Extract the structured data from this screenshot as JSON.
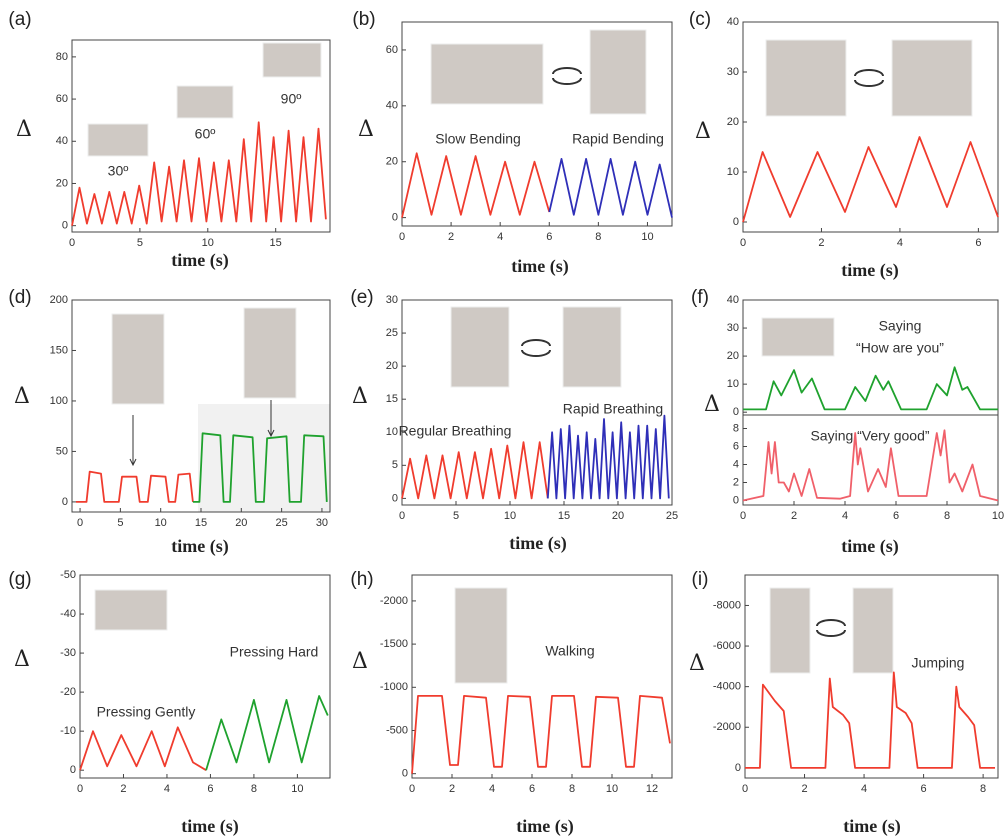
{
  "chart_data": [
    {
      "type": "line",
      "panel_label": "(a)",
      "ylabel": "Δ",
      "xlabel": "time (s)",
      "annotations": [
        "30º",
        "60º",
        "90º"
      ],
      "xlim": [
        0,
        19
      ],
      "xticks": [
        0,
        5,
        10,
        15
      ],
      "ylim": [
        -3,
        88
      ],
      "yticks": [
        0,
        20,
        40,
        60,
        80
      ],
      "series": [
        {
          "color": "#f03c2e",
          "x": [
            0,
            0.55,
            1.1,
            1.65,
            2.2,
            2.75,
            3.3,
            3.85,
            4.4,
            4.95,
            5.5,
            6.05,
            6.6,
            7.15,
            7.7,
            8.25,
            8.8,
            9.35,
            9.9,
            10.45,
            11,
            11.55,
            12.1,
            12.65,
            13.2,
            13.75,
            14.3,
            14.85,
            15.4,
            15.95,
            16.5,
            17.05,
            17.6,
            18.15,
            18.7
          ],
          "values": [
            0,
            18,
            1,
            15,
            1,
            16,
            1,
            16,
            1,
            19,
            1,
            30,
            2,
            28,
            2,
            31,
            2,
            32,
            2,
            30,
            2,
            31,
            2,
            41,
            2,
            49,
            2,
            42,
            2,
            45,
            2,
            42,
            2,
            46,
            3
          ]
        }
      ]
    },
    {
      "type": "line",
      "panel_label": "(b)",
      "ylabel": "Δ",
      "xlabel": "time (s)",
      "annotations": [
        "Slow Bending",
        "Rapid Bending"
      ],
      "xlim": [
        0,
        11
      ],
      "xticks": [
        0,
        2,
        4,
        6,
        8,
        10
      ],
      "ylim": [
        -3,
        70
      ],
      "yticks": [
        0,
        20,
        40,
        60
      ],
      "series": [
        {
          "color": "#f03c2e",
          "x": [
            0,
            0.6,
            1.2,
            1.8,
            2.4,
            3.0,
            3.6,
            4.2,
            4.8,
            5.4,
            6.0
          ],
          "values": [
            0,
            23,
            1,
            22,
            1,
            22,
            1,
            20,
            1,
            20,
            2
          ]
        },
        {
          "color": "#2f2fb8",
          "x": [
            6.0,
            6.5,
            7.0,
            7.5,
            8.0,
            8.5,
            9.0,
            9.5,
            10.0,
            10.5,
            11.0
          ],
          "values": [
            2,
            21,
            1,
            21,
            1,
            21,
            1,
            20,
            1,
            19,
            0
          ]
        }
      ]
    },
    {
      "type": "line",
      "panel_label": "(c)",
      "ylabel": "Δ",
      "xlabel": "time (s)",
      "annotations": [],
      "xlim": [
        0,
        6.5
      ],
      "xticks": [
        0,
        2,
        4,
        6
      ],
      "ylim": [
        -2,
        40
      ],
      "yticks": [
        0,
        10,
        20,
        30,
        40
      ],
      "series": [
        {
          "color": "#f03c2e",
          "x": [
            0,
            0.5,
            1.2,
            1.9,
            2.6,
            3.2,
            3.9,
            4.5,
            5.2,
            5.8,
            6.5
          ],
          "values": [
            0,
            14,
            1,
            14,
            2,
            15,
            3,
            17,
            3,
            16,
            1
          ]
        }
      ]
    },
    {
      "type": "line",
      "panel_label": "(d)",
      "ylabel": "Δ",
      "xlabel": "time (s)",
      "annotations": [],
      "xlim": [
        -1,
        31
      ],
      "xticks": [
        0,
        5,
        10,
        15,
        20,
        25,
        30
      ],
      "ylim": [
        -10,
        200
      ],
      "yticks": [
        0,
        50,
        100,
        150,
        200
      ],
      "series": [
        {
          "color": "#f03c2e",
          "x": [
            -0.5,
            0.8,
            1.2,
            2.6,
            3.0,
            4.8,
            5.2,
            7.0,
            7.4,
            8.4,
            8.8,
            10.6,
            11.0,
            11.8,
            12.2,
            13.6,
            14.0
          ],
          "values": [
            0,
            0,
            30,
            28,
            0,
            0,
            25,
            25,
            0,
            0,
            26,
            25,
            0,
            0,
            27,
            28,
            0
          ]
        },
        {
          "color": "#1fa22e",
          "x": [
            14.0,
            14.8,
            15.2,
            17.4,
            17.8,
            18.6,
            19.0,
            21.4,
            21.8,
            22.8,
            23.2,
            25.6,
            26.0,
            27.4,
            27.8,
            30.2,
            30.6
          ],
          "values": [
            0,
            0,
            68,
            66,
            0,
            0,
            66,
            64,
            0,
            0,
            63,
            65,
            0,
            0,
            66,
            65,
            0
          ]
        }
      ]
    },
    {
      "type": "line",
      "panel_label": "(e)",
      "ylabel": "Δ",
      "xlabel": "time (s)",
      "annotations": [
        "Regular Breathing",
        "Rapid Breathing"
      ],
      "xlim": [
        0,
        25
      ],
      "xticks": [
        0,
        5,
        10,
        15,
        20,
        25
      ],
      "ylim": [
        -1,
        30
      ],
      "yticks": [
        0,
        5,
        10,
        15,
        20,
        25,
        30
      ],
      "series": [
        {
          "color": "#f03c2e",
          "x": [
            0,
            0.75,
            1.5,
            2.25,
            3,
            3.75,
            4.5,
            5.25,
            6,
            6.75,
            7.5,
            8.25,
            9,
            9.75,
            10.5,
            11.25,
            12,
            12.75,
            13.5
          ],
          "values": [
            0,
            6,
            0,
            6.5,
            0,
            6.5,
            0,
            7,
            0,
            7,
            0,
            7.5,
            0,
            8,
            0,
            8.5,
            0,
            8.5,
            0
          ]
        },
        {
          "color": "#2f2fb8",
          "x": [
            13.5,
            13.9,
            14.3,
            14.7,
            15.1,
            15.5,
            15.9,
            16.3,
            16.7,
            17.1,
            17.5,
            17.9,
            18.3,
            18.7,
            19.1,
            19.5,
            19.9,
            20.3,
            20.7,
            21.1,
            21.5,
            21.9,
            22.3,
            22.7,
            23.1,
            23.5,
            23.9,
            24.3,
            24.7
          ],
          "values": [
            0,
            10,
            0,
            10.5,
            0,
            11,
            0,
            9.5,
            0,
            10,
            0,
            9,
            0,
            12,
            0,
            10,
            0,
            11.5,
            0,
            10,
            0,
            11,
            0,
            11,
            0,
            10.5,
            0,
            12.5,
            0
          ]
        }
      ]
    },
    {
      "type": "line",
      "panel_label": "(f)",
      "annotations": [
        "Saying",
        "“How are you”"
      ],
      "xlim": [
        0,
        10
      ],
      "ylim": [
        -1,
        40
      ],
      "yticks": [
        0,
        10,
        20,
        30,
        40
      ],
      "series": [
        {
          "color": "#1fa22e",
          "x": [
            0,
            0.9,
            1.2,
            1.5,
            2.0,
            2.3,
            2.7,
            3.2,
            4.0,
            4.4,
            4.8,
            5.2,
            5.5,
            5.7,
            6.2,
            7.2,
            7.6,
            8.0,
            8.3,
            8.6,
            8.8,
            9.3,
            10
          ],
          "values": [
            1,
            1,
            11,
            6,
            15,
            7,
            12,
            1,
            1,
            9,
            4,
            13,
            8,
            11,
            1,
            1,
            10,
            6,
            16,
            8,
            9,
            1,
            1
          ]
        }
      ]
    },
    {
      "type": "line",
      "ylabel": "Δ",
      "xlabel": "time (s)",
      "annotations": [
        "Saying “Very good”"
      ],
      "xlim": [
        0,
        10
      ],
      "xticks": [
        0,
        2,
        4,
        6,
        8,
        10
      ],
      "ylim": [
        -0.5,
        9.5
      ],
      "yticks": [
        0,
        2,
        4,
        6,
        8
      ],
      "series": [
        {
          "color": "#f0606a",
          "x": [
            0,
            0.8,
            1.0,
            1.12,
            1.25,
            1.4,
            1.6,
            1.8,
            2.0,
            2.3,
            2.6,
            2.9,
            3.8,
            4.2,
            4.4,
            4.5,
            4.6,
            4.9,
            5.3,
            5.6,
            5.8,
            6.1,
            7.2,
            7.6,
            7.75,
            7.9,
            8.1,
            8.3,
            8.6,
            9.0,
            9.3,
            10
          ],
          "values": [
            0,
            0.5,
            6.5,
            3,
            6.5,
            2,
            2,
            1,
            3,
            0.5,
            3.5,
            0.3,
            0.2,
            0.5,
            7.5,
            4,
            5.8,
            1,
            3.5,
            1.5,
            5.8,
            0.5,
            0.5,
            7.5,
            5,
            7.8,
            2,
            3,
            1,
            4,
            0.5,
            0
          ]
        }
      ]
    },
    {
      "type": "line",
      "panel_label": "(g)",
      "ylabel": "Δ",
      "xlabel": "time (s)",
      "annotations": [
        "Pressing Gently",
        "Pressing Hard"
      ],
      "xlim": [
        0,
        11.5
      ],
      "xticks": [
        0,
        2,
        4,
        6,
        8,
        10
      ],
      "ylim": [
        2,
        -50
      ],
      "yticks": [
        0,
        -10,
        -20,
        -30,
        -40,
        -50
      ],
      "series": [
        {
          "color": "#f03c2e",
          "x": [
            0,
            0.6,
            1.25,
            1.9,
            2.6,
            3.3,
            3.9,
            4.5,
            5.2,
            5.8
          ],
          "values": [
            0,
            -10,
            -1,
            -9,
            -1,
            -10,
            -1,
            -11,
            -2,
            0
          ]
        },
        {
          "color": "#1fa22e",
          "x": [
            5.8,
            6.5,
            7.2,
            8.0,
            8.7,
            9.5,
            10.2,
            11.0,
            11.4
          ],
          "values": [
            0,
            -13,
            -2,
            -18,
            -2,
            -18,
            -2,
            -19,
            -14
          ]
        }
      ]
    },
    {
      "type": "line",
      "panel_label": "(h)",
      "ylabel": "Δ",
      "xlabel": "time (s)",
      "annotations": [
        "Walking"
      ],
      "xlim": [
        0,
        13
      ],
      "xticks": [
        0,
        2,
        4,
        6,
        8,
        10,
        12
      ],
      "ylim": [
        50,
        -2300
      ],
      "yticks": [
        0,
        -500,
        -1000,
        -1500,
        -2000
      ],
      "series": [
        {
          "color": "#f03c2e",
          "x": [
            0,
            0.3,
            1.5,
            1.9,
            2.3,
            2.6,
            3.7,
            4.1,
            4.5,
            4.8,
            5.9,
            6.3,
            6.7,
            7.0,
            8.1,
            8.5,
            8.9,
            9.2,
            10.3,
            10.7,
            11.1,
            11.4,
            12.5,
            12.9
          ],
          "values": [
            0,
            -900,
            -900,
            -100,
            -100,
            -900,
            -880,
            -80,
            -80,
            -900,
            -890,
            -80,
            -80,
            -900,
            -900,
            -80,
            -80,
            -890,
            -880,
            -80,
            -80,
            -900,
            -880,
            -350
          ]
        }
      ]
    },
    {
      "type": "line",
      "panel_label": "(i)",
      "ylabel": "Δ",
      "xlabel": "time (s)",
      "annotations": [
        "Jumping"
      ],
      "xlim": [
        0,
        8.5
      ],
      "xticks": [
        0,
        2,
        4,
        6,
        8
      ],
      "ylim": [
        500,
        -9500
      ],
      "yticks": [
        0,
        -2000,
        -4000,
        -6000,
        -8000
      ],
      "series": [
        {
          "color": "#f03c2e",
          "x": [
            0,
            0.5,
            0.6,
            1.0,
            1.3,
            1.55,
            2.7,
            2.85,
            2.95,
            3.3,
            3.5,
            3.7,
            4.85,
            5.0,
            5.1,
            5.4,
            5.6,
            5.8,
            6.95,
            7.1,
            7.2,
            7.5,
            7.7,
            7.9,
            8.4
          ],
          "values": [
            0,
            0,
            -4100,
            -3300,
            -2800,
            0,
            0,
            -4400,
            -3000,
            -2600,
            -2200,
            0,
            0,
            -4700,
            -3000,
            -2700,
            -2200,
            0,
            0,
            -4000,
            -3000,
            -2500,
            -2100,
            0,
            0
          ]
        }
      ]
    }
  ]
}
